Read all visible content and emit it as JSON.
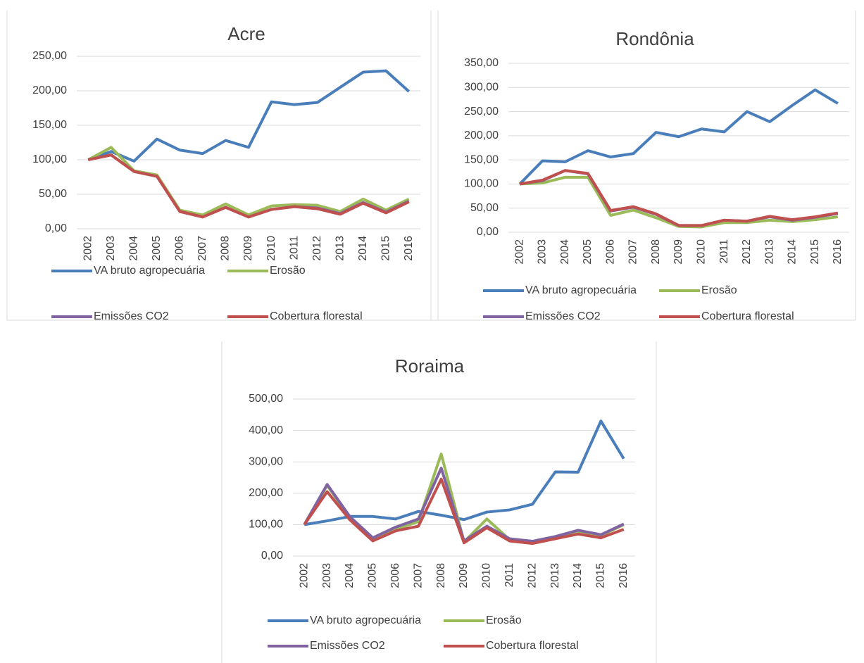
{
  "chart_data": [
    {
      "type": "line",
      "title": "Acre",
      "categories": [
        "2002",
        "2003",
        "2004",
        "2005",
        "2006",
        "2007",
        "2008",
        "2009",
        "2010",
        "2011",
        "2012",
        "2013",
        "2014",
        "2015",
        "2016"
      ],
      "ylim": [
        0,
        250
      ],
      "yticks": [
        {
          "value": 0,
          "label": "0,00"
        },
        {
          "value": 50,
          "label": "50,00"
        },
        {
          "value": 100,
          "label": "100,00"
        },
        {
          "value": 150,
          "label": "150,00"
        },
        {
          "value": 200,
          "label": "200,00"
        },
        {
          "value": 250,
          "label": "250,00"
        }
      ],
      "grid": true,
      "series": [
        {
          "name": "VA bruto agropecuária",
          "color": "#4a7ebb",
          "values": [
            100,
            112,
            98,
            130,
            114,
            109,
            128,
            118,
            184,
            180,
            183,
            205,
            227,
            229,
            199
          ]
        },
        {
          "name": "Erosão",
          "color": "#9bbb59",
          "values": [
            100,
            118,
            84,
            78,
            27,
            20,
            36,
            20,
            33,
            35,
            34,
            25,
            43,
            27,
            43
          ]
        },
        {
          "name": "Emissões CO2",
          "color": "#8064a2",
          "values": [
            100,
            107,
            83,
            76,
            25,
            17,
            31,
            17,
            28,
            32,
            30,
            22,
            38,
            24,
            40
          ]
        },
        {
          "name": "Cobertura florestal",
          "color": "#c0504d",
          "values": [
            100,
            107,
            83,
            76,
            25,
            17,
            31,
            17,
            28,
            32,
            29,
            21,
            37,
            23,
            39
          ]
        }
      ]
    },
    {
      "type": "line",
      "title": "Rondônia",
      "categories": [
        "2002",
        "2003",
        "2004",
        "2005",
        "2006",
        "2007",
        "2008",
        "2009",
        "2010",
        "2011",
        "2012",
        "2013",
        "2014",
        "2015",
        "2016"
      ],
      "ylim": [
        0,
        350
      ],
      "yticks": [
        {
          "value": 0,
          "label": "0,00"
        },
        {
          "value": 50,
          "label": "50,00"
        },
        {
          "value": 100,
          "label": "100,00"
        },
        {
          "value": 150,
          "label": "150,00"
        },
        {
          "value": 200,
          "label": "200,00"
        },
        {
          "value": 250,
          "label": "250,00"
        },
        {
          "value": 300,
          "label": "300,00"
        },
        {
          "value": 350,
          "label": "350,00"
        }
      ],
      "grid": true,
      "series": [
        {
          "name": "VA bruto agropecuária",
          "color": "#4a7ebb",
          "values": [
            100,
            148,
            146,
            169,
            156,
            163,
            207,
            198,
            214,
            208,
            250,
            229,
            263,
            295,
            267
          ]
        },
        {
          "name": "Erosão",
          "color": "#9bbb59",
          "values": [
            100,
            102,
            114,
            114,
            35,
            46,
            30,
            12,
            11,
            20,
            20,
            25,
            22,
            26,
            32
          ]
        },
        {
          "name": "Emissões CO2",
          "color": "#8064a2",
          "values": [
            100,
            107,
            128,
            121,
            44,
            52,
            37,
            14,
            14,
            25,
            23,
            32,
            25,
            31,
            39
          ]
        },
        {
          "name": "Cobertura florestal",
          "color": "#c0504d",
          "values": [
            100,
            108,
            128,
            122,
            45,
            53,
            38,
            14,
            14,
            25,
            23,
            33,
            26,
            32,
            40
          ]
        }
      ]
    },
    {
      "type": "line",
      "title": "Roraima",
      "categories": [
        "2002",
        "2003",
        "2004",
        "2005",
        "2006",
        "2007",
        "2008",
        "2009",
        "2010",
        "2011",
        "2012",
        "2013",
        "2014",
        "2015",
        "2016"
      ],
      "ylim": [
        0,
        500
      ],
      "yticks": [
        {
          "value": 0,
          "label": "0,00"
        },
        {
          "value": 100,
          "label": "100,00"
        },
        {
          "value": 200,
          "label": "200,00"
        },
        {
          "value": 300,
          "label": "300,00"
        },
        {
          "value": 400,
          "label": "400,00"
        },
        {
          "value": 500,
          "label": "500,00"
        }
      ],
      "grid": true,
      "series": [
        {
          "name": "VA bruto agropecuária",
          "color": "#4a7ebb",
          "values": [
            100,
            112,
            126,
            126,
            118,
            142,
            130,
            116,
            140,
            147,
            165,
            268,
            267,
            430,
            310
          ]
        },
        {
          "name": "Erosão",
          "color": "#9bbb59",
          "values": [
            100,
            225,
            120,
            55,
            85,
            110,
            325,
            45,
            118,
            52,
            45,
            55,
            78,
            65,
            100
          ]
        },
        {
          "name": "Emissões CO2",
          "color": "#8064a2",
          "values": [
            100,
            228,
            125,
            58,
            92,
            118,
            280,
            48,
            95,
            55,
            47,
            62,
            82,
            68,
            102
          ]
        },
        {
          "name": "Cobertura florestal",
          "color": "#c0504d",
          "values": [
            100,
            205,
            115,
            48,
            80,
            95,
            245,
            42,
            90,
            48,
            40,
            55,
            70,
            58,
            85
          ]
        }
      ]
    }
  ]
}
